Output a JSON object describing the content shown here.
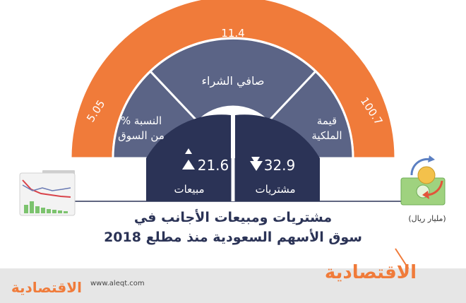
{
  "arc_values": {
    "left": "5.05",
    "top": "11.4",
    "right": "100.7"
  },
  "segments": {
    "left_label_line1": "النسبة %",
    "left_label_line2": "من السوق",
    "middle_label": "صافي الشراء",
    "right_label_line1": "قيمة",
    "right_label_line2": "الملكية"
  },
  "stats": {
    "sales_value": "21.6",
    "sales_label": "مبيعات",
    "purchases_value": "32.9",
    "purchases_label": "مشتريات"
  },
  "unit": "(مليار ريال)",
  "title": {
    "line1": "مشتريات ومبيعات الأجانب في",
    "line2": "سوق الأسهم السعودية منذ مطلع 2018"
  },
  "footer": {
    "logo_left": "الاقتصادية",
    "url": "www.aleqt.com",
    "logo_right": "الاقتصادية"
  },
  "colors": {
    "orange": "#f07b3a",
    "slate": "#5b6486",
    "navy": "#2b3356"
  }
}
